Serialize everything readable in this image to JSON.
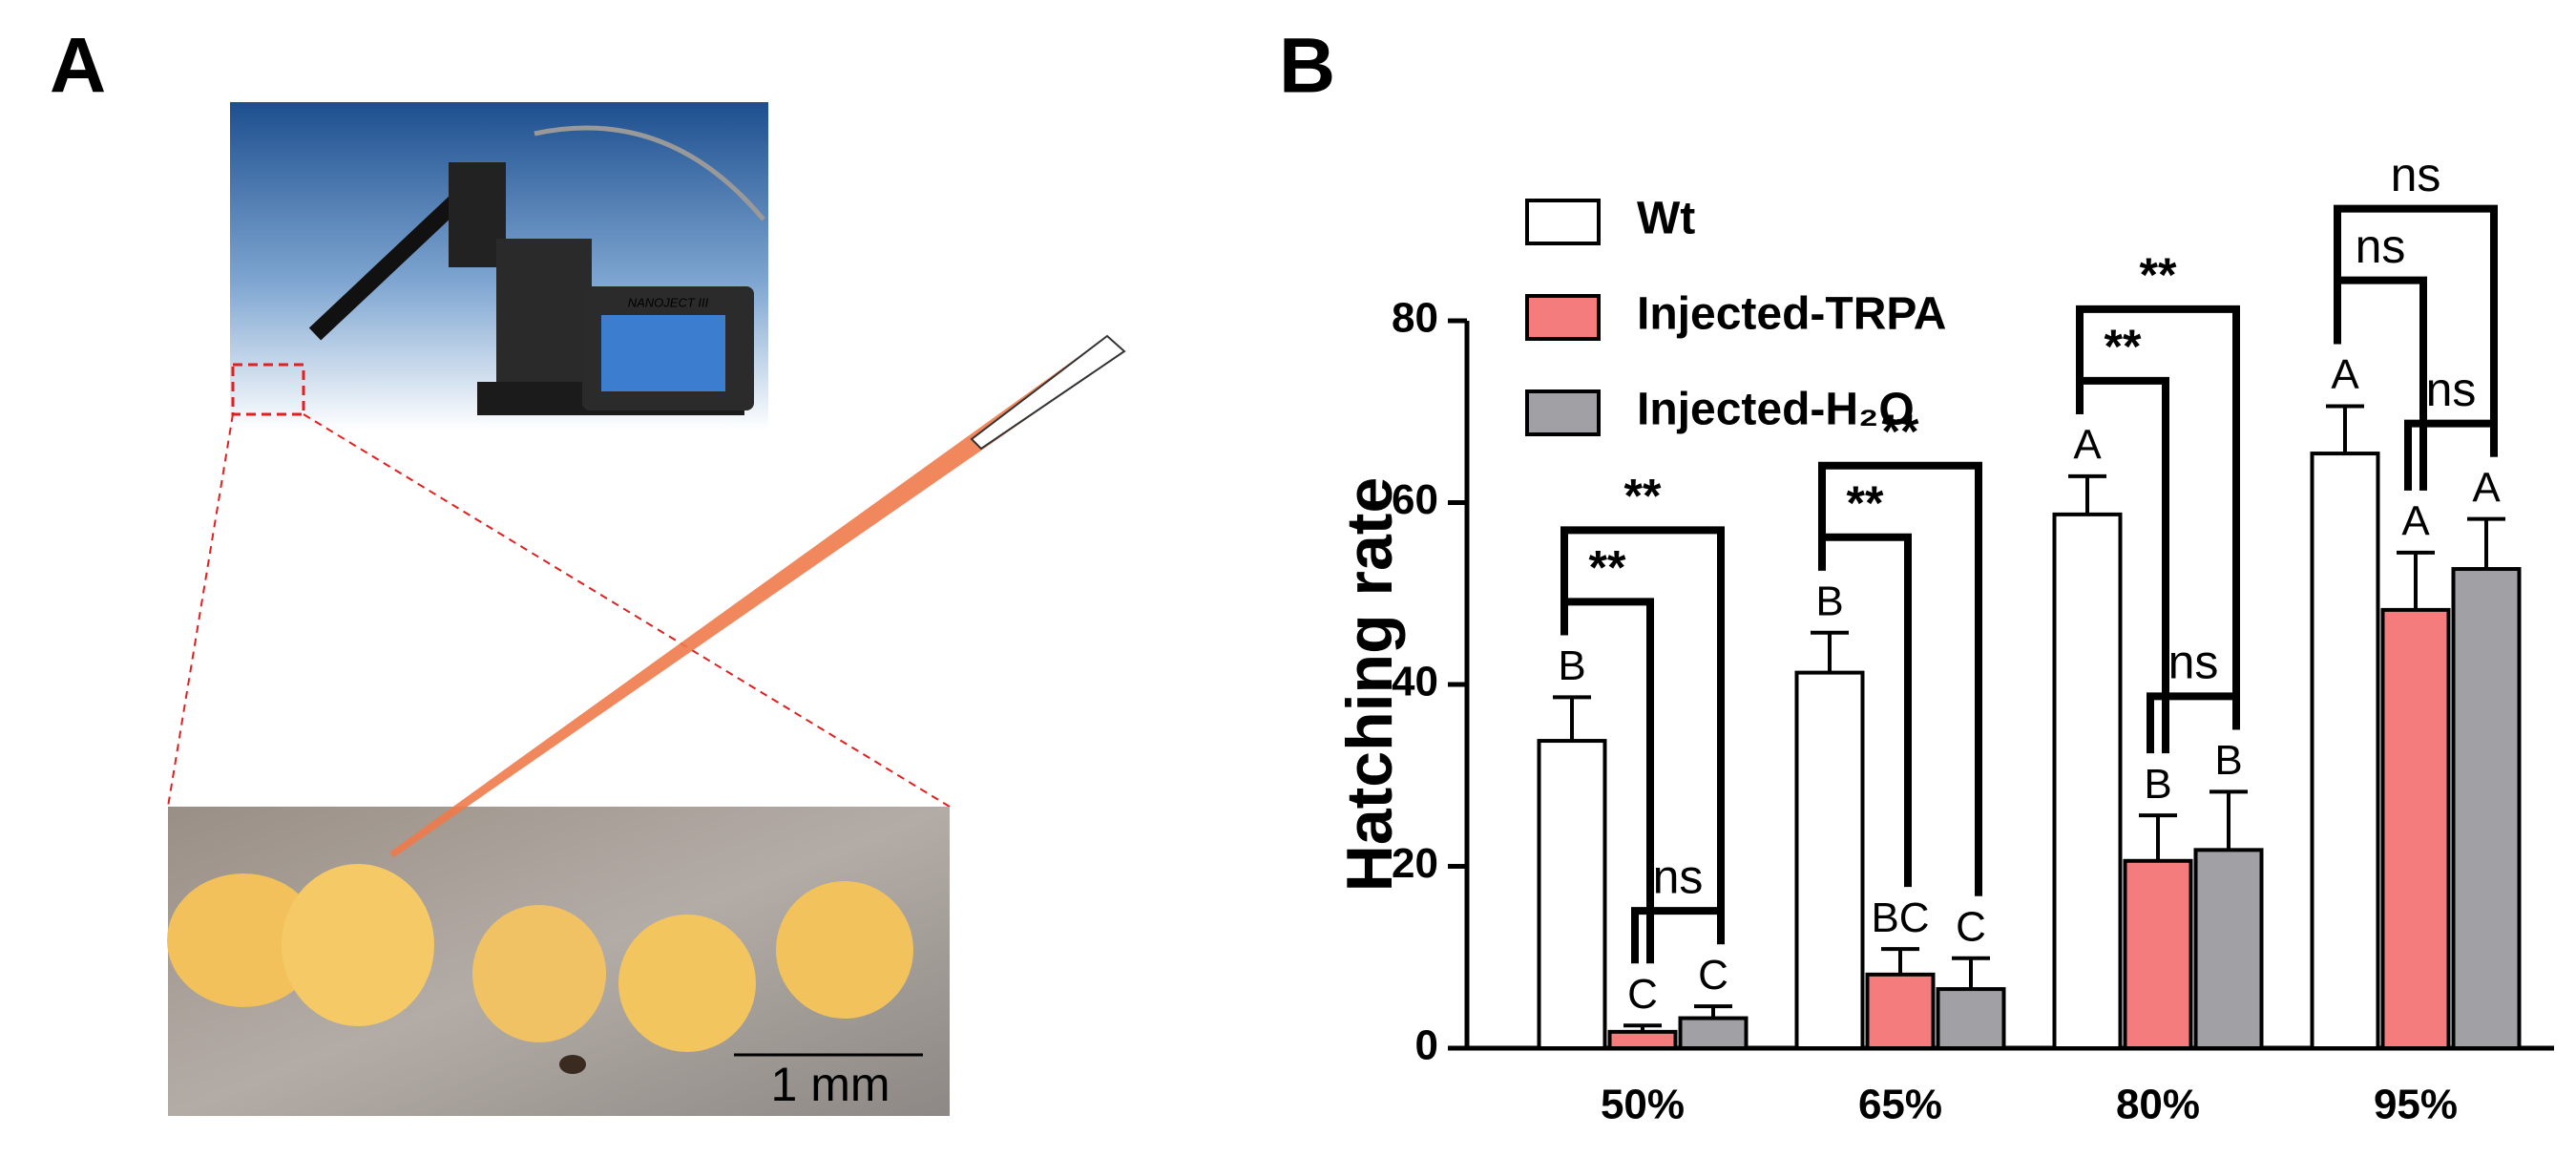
{
  "panel_labels": [
    "A",
    "B"
  ],
  "panel_a": {
    "device_label": "NANOJECT III",
    "scale_bar_label": "1 mm"
  },
  "chart_data": {
    "type": "bar",
    "ylabel": "Hatching rate",
    "categories": [
      "50%",
      "65%",
      "80%",
      "95%"
    ],
    "series": [
      {
        "name": "Wt",
        "color": "#ffffff",
        "values": [
          33.8,
          41.3,
          58.7,
          65.4
        ],
        "errors": [
          4.8,
          4.4,
          4.2,
          5.2
        ],
        "letters": [
          "B",
          "B",
          "A",
          "A"
        ]
      },
      {
        "name": "Injected-TRPA",
        "color": "#f47c7c",
        "values": [
          1.8,
          8.1,
          20.6,
          48.2
        ],
        "errors": [
          0.7,
          2.8,
          5.0,
          6.3
        ],
        "letters": [
          "C",
          "BC",
          "B",
          "A"
        ]
      },
      {
        "name": "Injected-H₂O",
        "color": "#a0a0a5",
        "values": [
          3.3,
          6.5,
          21.8,
          52.7
        ],
        "errors": [
          1.3,
          3.4,
          6.4,
          5.5
        ],
        "letters": [
          "C",
          "C",
          "B",
          "A"
        ]
      }
    ],
    "significance": [
      [
        "**",
        "**",
        "ns"
      ],
      [
        "**",
        "**",
        null
      ],
      [
        "**",
        "**",
        "ns"
      ],
      [
        "ns",
        "ns",
        "ns"
      ]
    ],
    "ylim": [
      0,
      80
    ],
    "yticks": [
      0,
      20,
      40,
      60,
      80
    ],
    "grid": false,
    "legend": "top-left"
  }
}
